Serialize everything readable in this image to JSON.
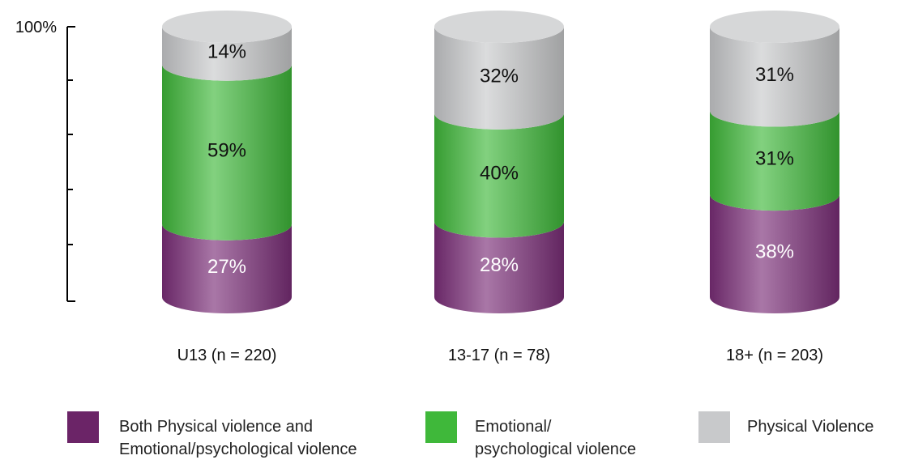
{
  "chart_data": {
    "type": "bar",
    "stacked": true,
    "style": "3d-cylinder",
    "categories": [
      "U13 (n = 220)",
      "13-17 (n = 78)",
      "18+ (n = 203)"
    ],
    "series": [
      {
        "name": "Both Physical violence and\nEmotional/psychological violence",
        "values": [
          27,
          28,
          38
        ],
        "color": "#7a2e78"
      },
      {
        "name": "Emotional/\npsychological violence",
        "values": [
          59,
          40,
          31
        ],
        "color": "#3fb83a"
      },
      {
        "name": "Physical Violence",
        "values": [
          14,
          32,
          31
        ],
        "color": "#c8c9cb"
      }
    ],
    "value_labels": [
      [
        "27%",
        "28%",
        "38%"
      ],
      [
        "59%",
        "40%",
        "31%"
      ],
      [
        "14%",
        "32%",
        "31%"
      ]
    ],
    "ylim": [
      0,
      100
    ],
    "y_tick_label": "100%",
    "grid": false,
    "legend_position": "bottom"
  }
}
